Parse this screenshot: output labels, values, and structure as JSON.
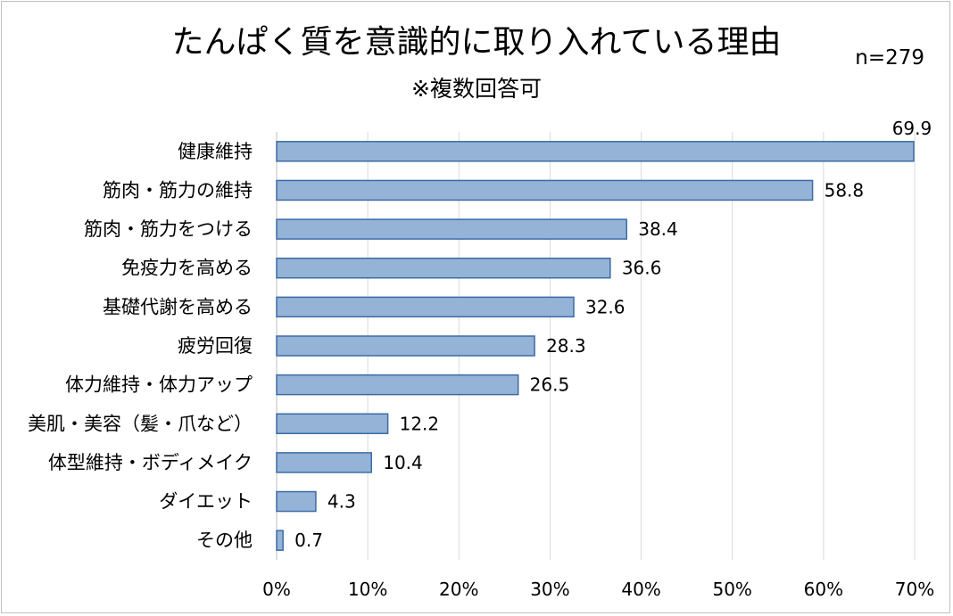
{
  "chart_data": {
    "type": "bar",
    "orientation": "horizontal",
    "title": "たんぱく質を意識的に取り入れている理由",
    "subtitle": "※複数回答可",
    "sample_size": "n=279",
    "categories": [
      "健康維持",
      "筋肉・筋力の維持",
      "筋肉・筋力をつける",
      "免疫力を高める",
      "基礎代謝を高める",
      "疲労回復",
      "体力維持・体力アップ",
      "美肌・美容（髪・爪など）",
      "体型維持・ボディメイク",
      "ダイエット",
      "その他"
    ],
    "values": [
      69.9,
      58.8,
      38.4,
      36.6,
      32.6,
      28.3,
      26.5,
      12.2,
      10.4,
      4.3,
      0.7
    ],
    "value_labels": [
      "69.9",
      "58.8",
      "38.4",
      "36.6",
      "32.6",
      "28.3",
      "26.5",
      "12.2",
      "10.4",
      "4.3",
      "0.7"
    ],
    "xlim": [
      0,
      70
    ],
    "x_ticks": [
      "0%",
      "10%",
      "20%",
      "30%",
      "40%",
      "50%",
      "60%",
      "70%"
    ],
    "grid": "vertical",
    "colors": {
      "bar_fill": "#95b3d7",
      "bar_stroke": "#3b6ba5",
      "grid": "#d9d9d9"
    }
  }
}
